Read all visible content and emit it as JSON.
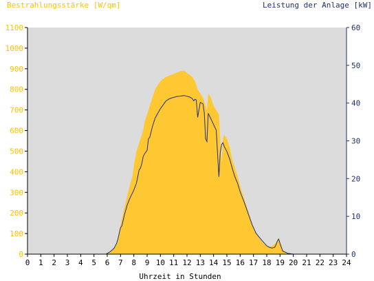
{
  "chart_data": {
    "type": "area",
    "title": "",
    "xlabel": "Uhrzeit in Stunden",
    "ylabel_left": "Bestrahlungsstärke [W/qm]",
    "ylabel_right": "Leistung der Anlage [kW]",
    "xlim": [
      0,
      24
    ],
    "ylim_left": [
      0,
      1100
    ],
    "ylim_right": [
      0,
      60
    ],
    "x_ticks": [
      "0",
      "1",
      "2",
      "3",
      "4",
      "5",
      "6",
      "7",
      "8",
      "9",
      "10",
      "11",
      "12",
      "13",
      "14",
      "15",
      "16",
      "17",
      "18",
      "19",
      "20",
      "21",
      "22",
      "23",
      "24"
    ],
    "y_ticks_left": [
      "0",
      "100",
      "200",
      "300",
      "400",
      "500",
      "600",
      "700",
      "800",
      "900",
      "1000",
      "1100"
    ],
    "y_ticks_right": [
      "0",
      "10",
      "20",
      "30",
      "40",
      "50",
      "60"
    ],
    "grid": false,
    "colors": {
      "irradiance": "#ffc832",
      "power": "#1f2f6e",
      "plot_bg": "#dcdcdc"
    },
    "series": [
      {
        "axis": "left",
        "style": "area",
        "x": [
          0,
          5.9,
          6.0,
          6.3,
          6.6,
          6.8,
          7.0,
          7.3,
          7.6,
          7.9,
          8.0,
          8.2,
          8.4,
          8.5,
          8.7,
          8.8,
          9.0,
          9.2,
          9.4,
          9.6,
          9.8,
          10.0,
          10.2,
          10.4,
          10.6,
          10.8,
          11.0,
          11.2,
          11.4,
          11.6,
          11.8,
          12.0,
          12.2,
          12.4,
          12.6,
          12.8,
          13.0,
          13.2,
          13.4,
          13.5,
          13.6,
          13.8,
          14.0,
          14.2,
          14.4,
          14.5,
          14.6,
          14.7,
          14.8,
          15.0,
          15.2,
          15.4,
          15.6,
          15.8,
          16.0,
          16.3,
          16.6,
          16.9,
          17.2,
          17.5,
          17.8,
          18.0,
          18.2,
          18.4,
          18.6,
          18.8,
          18.9,
          19.0,
          19.2,
          19.6,
          20,
          24
        ],
        "y": [
          0,
          0,
          5,
          15,
          40,
          80,
          140,
          230,
          310,
          380,
          430,
          500,
          540,
          560,
          600,
          640,
          680,
          720,
          760,
          800,
          820,
          840,
          850,
          860,
          865,
          870,
          875,
          880,
          885,
          890,
          890,
          880,
          870,
          860,
          840,
          800,
          780,
          760,
          720,
          700,
          780,
          760,
          720,
          700,
          680,
          560,
          440,
          560,
          580,
          560,
          520,
          460,
          420,
          380,
          330,
          270,
          210,
          150,
          100,
          70,
          50,
          40,
          35,
          40,
          50,
          65,
          80,
          60,
          20,
          5,
          0,
          0
        ]
      },
      {
        "axis": "right",
        "style": "line",
        "x": [
          0,
          5.9,
          6.0,
          6.2,
          6.5,
          6.7,
          6.8,
          6.9,
          7.0,
          7.1,
          7.3,
          7.5,
          7.7,
          7.9,
          8.0,
          8.2,
          8.4,
          8.5,
          8.6,
          8.7,
          8.8,
          9.0,
          9.1,
          9.2,
          9.4,
          9.6,
          9.8,
          10.0,
          10.2,
          10.4,
          10.6,
          10.8,
          11.0,
          11.2,
          11.4,
          11.6,
          11.8,
          12.0,
          12.2,
          12.4,
          12.5,
          12.6,
          12.7,
          12.8,
          13.0,
          13.2,
          13.3,
          13.4,
          13.5,
          13.6,
          13.8,
          14.0,
          14.2,
          14.4,
          14.5,
          14.6,
          14.7,
          14.8,
          15.0,
          15.2,
          15.4,
          15.6,
          15.8,
          16.0,
          16.3,
          16.6,
          16.9,
          17.2,
          17.5,
          17.8,
          18.0,
          18.2,
          18.4,
          18.6,
          18.7,
          18.8,
          18.9,
          19.0,
          19.2,
          19.6,
          20,
          24
        ],
        "y": [
          0,
          0,
          0.2,
          0.6,
          1.5,
          2.8,
          4.0,
          5.5,
          7.0,
          7.5,
          10.5,
          13.0,
          14.8,
          16.2,
          17.0,
          18.8,
          22.3,
          22.8,
          24.0,
          25.8,
          26.5,
          27.5,
          30.5,
          31.0,
          33.8,
          36.0,
          37.3,
          38.5,
          39.5,
          40.5,
          41.0,
          41.3,
          41.5,
          41.7,
          41.8,
          41.9,
          42.0,
          41.8,
          41.6,
          41.2,
          40.6,
          41.0,
          40.8,
          36.2,
          40.2,
          39.8,
          37.5,
          30.5,
          29.8,
          37.3,
          35.8,
          34.3,
          32.8,
          20.5,
          26.8,
          29.0,
          29.5,
          28.5,
          27.2,
          25.3,
          22.8,
          20.5,
          18.8,
          16.5,
          13.8,
          10.8,
          7.8,
          5.5,
          4.2,
          3.0,
          2.2,
          1.8,
          1.6,
          1.8,
          2.5,
          3.5,
          4.0,
          2.8,
          0.8,
          0.2,
          0,
          0
        ]
      }
    ]
  }
}
